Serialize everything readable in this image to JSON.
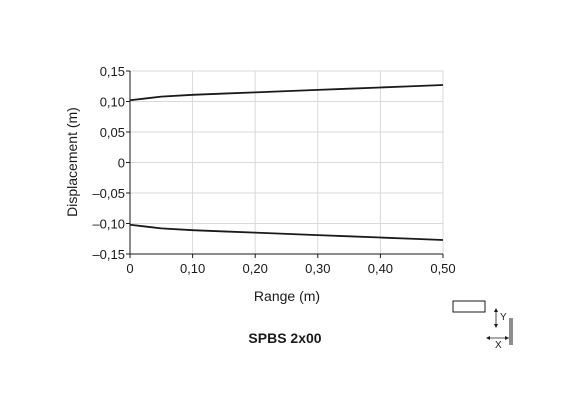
{
  "chart_data": {
    "type": "line",
    "xlabel": "Range (m)",
    "ylabel": "Displacement (m)",
    "xlim": [
      0,
      0.5
    ],
    "ylim": [
      -0.15,
      0.15
    ],
    "grid": true,
    "x_ticks": [
      {
        "value": 0,
        "label": "0"
      },
      {
        "value": 0.1,
        "label": "0,10"
      },
      {
        "value": 0.2,
        "label": "0,20"
      },
      {
        "value": 0.3,
        "label": "0,30"
      },
      {
        "value": 0.4,
        "label": "0,40"
      },
      {
        "value": 0.5,
        "label": "0,50"
      }
    ],
    "y_ticks": [
      {
        "value": 0.15,
        "label": "0,15"
      },
      {
        "value": 0.1,
        "label": "0,10"
      },
      {
        "value": 0.05,
        "label": "0,05"
      },
      {
        "value": 0,
        "label": "0"
      },
      {
        "value": -0.05,
        "label": "–0,05"
      },
      {
        "value": -0.1,
        "label": "–0,10"
      },
      {
        "value": -0.15,
        "label": "–0,15"
      }
    ],
    "series": [
      {
        "x": [
          0,
          0.025,
          0.05,
          0.1,
          0.15,
          0.2,
          0.25,
          0.3,
          0.35,
          0.4,
          0.45,
          0.5
        ],
        "y": [
          0.102,
          0.105,
          0.108,
          0.111,
          0.113,
          0.115,
          0.117,
          0.119,
          0.121,
          0.123,
          0.125,
          0.127
        ]
      },
      {
        "x": [
          0,
          0.025,
          0.05,
          0.1,
          0.15,
          0.2,
          0.25,
          0.3,
          0.35,
          0.4,
          0.45,
          0.5
        ],
        "y": [
          -0.102,
          -0.105,
          -0.108,
          -0.111,
          -0.113,
          -0.115,
          -0.117,
          -0.119,
          -0.121,
          -0.123,
          -0.125,
          -0.127
        ]
      }
    ],
    "line_color": "#1a1a1a",
    "grid_color": "#d9d9d9"
  },
  "caption": "SPBS 2x00",
  "diagram": {
    "y_label": "Y",
    "x_label": "X"
  }
}
